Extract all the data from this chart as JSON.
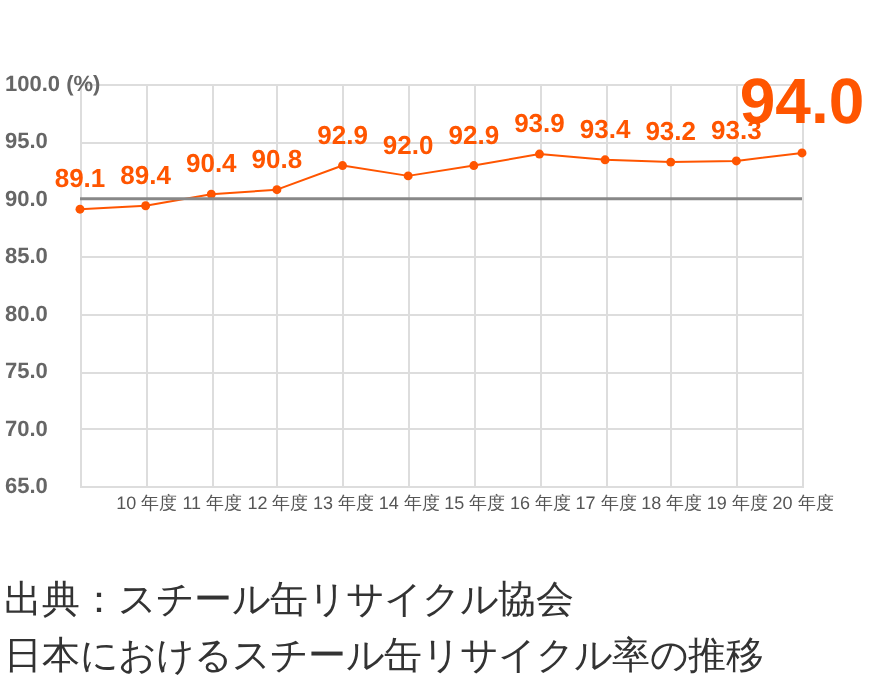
{
  "chart_data": {
    "type": "line",
    "title": "日本におけるスチール缶リサイクル率の推移",
    "annotations": [
      "出典：スチール缶リサイクル協会"
    ],
    "categories": [
      null,
      "10 年度",
      "11 年度",
      "12 年度",
      "13 年度",
      "14 年度",
      "15 年度",
      "16 年度",
      "17 年度",
      "18 年度",
      "19 年度",
      "20 年度"
    ],
    "series": [
      {
        "color": "#ff5500",
        "values": [
          89.1,
          89.4,
          90.4,
          90.8,
          92.9,
          92.0,
          92.9,
          93.9,
          93.4,
          93.2,
          93.3,
          94.0
        ],
        "value_labels": [
          "89.1",
          "89.4",
          "90.4",
          "90.8",
          "92.9",
          "92.0",
          "92.9",
          "93.9",
          "93.4",
          "93.2",
          "93.3",
          "94.0"
        ]
      }
    ],
    "ylim": [
      65,
      100
    ],
    "yticks": [
      {
        "value": 65,
        "label": "65.0"
      },
      {
        "value": 70,
        "label": "70.0"
      },
      {
        "value": 75,
        "label": "75.0"
      },
      {
        "value": 80,
        "label": "80.0"
      },
      {
        "value": 85,
        "label": "85.0"
      },
      {
        "value": 90,
        "label": "90.0"
      },
      {
        "value": 95,
        "label": "95.0"
      },
      {
        "value": 100,
        "label": "100.0 (%)"
      }
    ],
    "ref_lines": [
      {
        "axis": "y",
        "value": 90,
        "color": "#888888"
      }
    ],
    "grid": true,
    "marker": "circle",
    "line_style": "solid"
  }
}
